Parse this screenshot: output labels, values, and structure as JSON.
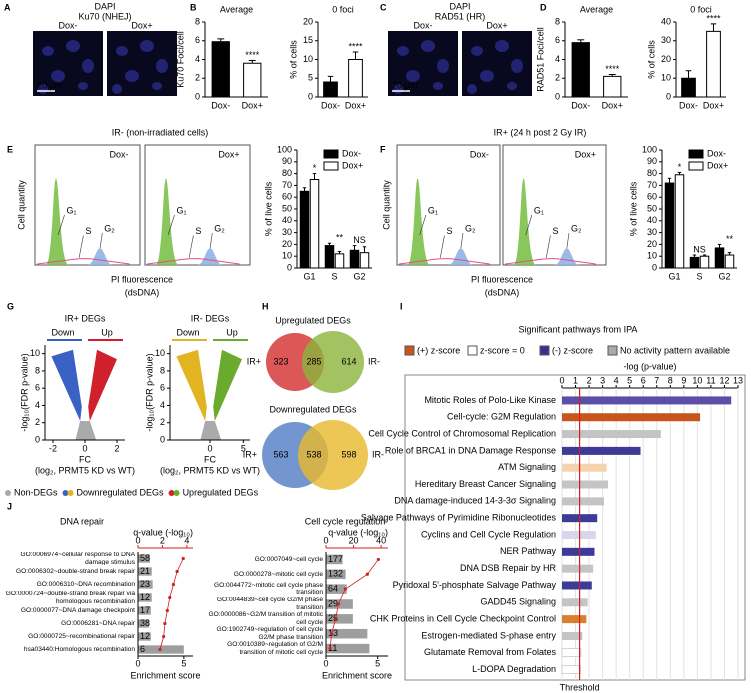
{
  "panels": [
    "A",
    "B",
    "C",
    "D",
    "E",
    "F",
    "G",
    "H",
    "I",
    "J"
  ],
  "micrographs": [
    {
      "stain": "DAPI",
      "stain_color": "#2b2bd0",
      "target": "Ku70 (NHEJ)",
      "target_color": "#3fae3a",
      "conditions": [
        "Dox-",
        "Dox+"
      ],
      "scale": "20 µm"
    },
    {
      "stain": "DAPI",
      "stain_color": "#2b2bd0",
      "target": "RAD51 (HR)",
      "target_color": "#d42020",
      "conditions": [
        "Dox-",
        "Dox+"
      ],
      "scale": "20 µm"
    }
  ],
  "section_titles": [
    "IR- (non-irradiated cells)",
    "IR+ (24 h post 2 Gy IR)"
  ],
  "flow_cytometry": {
    "ylabel": "Cell quantity",
    "xlabel": [
      "PI fluorescence",
      "(dsDNA)"
    ],
    "conditions": [
      "Dox-",
      "Dox+"
    ],
    "phases": [
      "G₁",
      "S",
      "G₂"
    ],
    "g1_color": "#7cc04a",
    "g2_color": "#8fb2e6",
    "fit_color": "#e0508a"
  },
  "deg_legend": [
    {
      "name": "Non-DEGs",
      "colors": [
        "#aaaaaa"
      ]
    },
    {
      "name": "Downregulated DEGs",
      "colors": [
        "#3a62c4",
        "#e3b422"
      ]
    },
    {
      "name": "Upregulated DEGs",
      "colors": [
        "#d0202c",
        "#6aaa2c"
      ]
    }
  ],
  "venn": [
    {
      "title": "Upregulated DEGs",
      "sets": [
        "IR+",
        "IR-"
      ],
      "counts": [
        323,
        285,
        614
      ],
      "colors": [
        "#d63a3a",
        "#8cb43c"
      ]
    },
    {
      "title": "Downregulated DEGs",
      "sets": [
        "IR+",
        "IR-"
      ],
      "counts": [
        563,
        538,
        598
      ],
      "colors": [
        "#5b83c8",
        "#e8b92a"
      ]
    }
  ],
  "chart_data": [
    {
      "type": "bar",
      "title": "Average",
      "ylabel": "Ku70 Foci/cell",
      "categories": [
        "Dox-",
        "Dox+"
      ],
      "values": [
        5.9,
        3.6
      ],
      "errors": [
        0.3,
        0.3
      ],
      "colors": [
        "#000000",
        "#ffffff"
      ],
      "annotations": [
        null,
        "****"
      ],
      "ylim": [
        0,
        8
      ],
      "yticks": [
        0,
        2,
        4,
        6,
        8
      ]
    },
    {
      "type": "bar",
      "title": "0 foci",
      "ylabel": "% of cells",
      "categories": [
        "Dox-",
        "Dox+"
      ],
      "values": [
        4,
        10
      ],
      "errors": [
        1.5,
        2
      ],
      "colors": [
        "#000000",
        "#ffffff"
      ],
      "annotations": [
        null,
        "****"
      ],
      "ylim": [
        0,
        20
      ],
      "yticks": [
        0,
        5,
        10,
        15,
        20
      ]
    },
    {
      "type": "bar",
      "title": "Average",
      "ylabel": "RAD51 Foci/cell",
      "categories": [
        "Dox-",
        "Dox+"
      ],
      "values": [
        5.8,
        2.2
      ],
      "errors": [
        0.3,
        0.2
      ],
      "colors": [
        "#000000",
        "#ffffff"
      ],
      "annotations": [
        null,
        "****"
      ],
      "ylim": [
        0,
        8
      ],
      "yticks": [
        0,
        2,
        4,
        6,
        8
      ]
    },
    {
      "type": "bar",
      "title": "0 foci",
      "ylabel": "% of cells",
      "categories": [
        "Dox-",
        "Dox+"
      ],
      "values": [
        10,
        35
      ],
      "errors": [
        4,
        4
      ],
      "colors": [
        "#000000",
        "#ffffff"
      ],
      "annotations": [
        null,
        "****"
      ],
      "ylim": [
        0,
        40
      ],
      "yticks": [
        0,
        10,
        20,
        30,
        40
      ]
    },
    {
      "type": "grouped-bar",
      "ylabel": "% of live cells",
      "categories": [
        "G1",
        "S",
        "G2"
      ],
      "series": [
        {
          "name": "Dox-",
          "color": "#000000",
          "values": [
            65,
            19,
            15
          ],
          "errors": [
            3,
            2,
            4
          ]
        },
        {
          "name": "Dox+",
          "color": "#ffffff",
          "values": [
            75,
            12,
            13
          ],
          "errors": [
            5,
            2,
            5
          ]
        }
      ],
      "annotations": [
        "*",
        "**",
        "NS"
      ],
      "ylim": [
        0,
        100
      ],
      "yticks": [
        0,
        10,
        20,
        30,
        40,
        50,
        60,
        70,
        80,
        90,
        100
      ],
      "legend": "upper right"
    },
    {
      "type": "grouped-bar",
      "ylabel": "% of live cells",
      "categories": [
        "G1",
        "S",
        "G2"
      ],
      "series": [
        {
          "name": "Dox-",
          "color": "#000000",
          "values": [
            72,
            9,
            17
          ],
          "errors": [
            4,
            2,
            3
          ]
        },
        {
          "name": "Dox+",
          "color": "#ffffff",
          "values": [
            79,
            10,
            11
          ],
          "errors": [
            2,
            1,
            2
          ]
        }
      ],
      "annotations": [
        "*",
        "NS",
        "**"
      ],
      "ylim": [
        0,
        100
      ],
      "yticks": [
        0,
        10,
        20,
        30,
        40,
        50,
        60,
        70,
        80,
        90,
        100
      ],
      "legend": "upper right"
    },
    {
      "type": "volcano",
      "title": "IR+ DEGs",
      "down": "Down",
      "up": "Up",
      "down_color": "#3a62c4",
      "up_color": "#d0202c",
      "ylabel": "-log₁₀(FDR p-value)",
      "xlabel": [
        "FC",
        "(log₂, PRMT5 KD vs WT)"
      ],
      "xlim": [
        -2.5,
        2.5
      ],
      "xticks": [
        -2,
        0,
        2
      ],
      "ylim": [
        0,
        11
      ],
      "yticks": [
        0,
        2,
        4,
        6,
        8,
        10
      ]
    },
    {
      "type": "volcano",
      "title": "IR- DEGs",
      "down": "Down",
      "up": "Up",
      "down_color": "#e3b422",
      "up_color": "#6aaa2c",
      "ylabel": "-log₁₀(FDR p-value)",
      "xlabel": [
        "FC",
        "(log₂, PRMT5 KD vs WT)"
      ],
      "xlim": [
        -6,
        6
      ],
      "xticks": [
        0,
        5
      ],
      "ylim": [
        0,
        11
      ],
      "yticks": [
        0,
        2,
        4,
        6,
        8,
        10
      ]
    },
    {
      "type": "enrichment",
      "title": "DNA repair",
      "categories": [
        "GO:0006974~cellular response to DNA damage stimulus",
        "GO:0006302~double-strand break repair",
        "GO:0006310~DNA recombination",
        "GO:0000724~double-strand break repair via homologous recombination",
        "GO:0000077~DNA damage checkpoint",
        "GO:0006281~DNA repair",
        "GO:0000725~recombinational repair",
        "hsa03440:Homologous recombination"
      ],
      "values": [
        1.3,
        1.5,
        1.6,
        1.5,
        1.4,
        1.2,
        1.4,
        5.0
      ],
      "counts": [
        58,
        21,
        23,
        12,
        17,
        38,
        12,
        6
      ],
      "qvalues": [
        3.7,
        3.2,
        2.9,
        2.6,
        2.4,
        2.2,
        2.1,
        1.8
      ],
      "xlabel": "Enrichment score",
      "xlim": [
        0,
        6
      ],
      "xticks": [
        0,
        5
      ],
      "x2label": "q-value (-log₁₀)",
      "x2lim": [
        0,
        4.5
      ],
      "x2ticks": [
        0,
        2,
        4
      ]
    },
    {
      "type": "enrichment",
      "title": "Cell cycle regulation",
      "categories": [
        "GO:0007049~cell cycle",
        "GO:0000278~mitotic cell cycle",
        "GO:0044772~mitotic cell cycle phase transition",
        "GO:0044839~cell cycle G2/M phase transition",
        "GO:0000086~G2/M transition of mitotic cell cycle",
        "GO:1902749~regulation of cell cycle G2/M phase transition",
        "GO:0010389~regulation of G2/M transition of mitotic cell cycle"
      ],
      "values": [
        1.6,
        1.9,
        2.0,
        2.6,
        2.6,
        4.0,
        4.2
      ],
      "counts": [
        177,
        132,
        64,
        29,
        25,
        13,
        11
      ],
      "qvalues": [
        38,
        30,
        14,
        9,
        7,
        4,
        3
      ],
      "xlabel": "Enrichment score",
      "xlim": [
        0,
        6
      ],
      "xticks": [
        0,
        5
      ],
      "x2label": "q-value (-log₁₀)",
      "x2lim": [
        0,
        45
      ],
      "x2ticks": [
        0,
        20,
        40
      ]
    },
    {
      "type": "hbar",
      "title": "Significant pathways from IPA",
      "legend_items": [
        {
          "name": "(+) z-score",
          "color": "#c8561c"
        },
        {
          "name": "z-score = 0",
          "color": "#ffffff"
        },
        {
          "name": "(-) z-score",
          "color": "#35338f"
        },
        {
          "name": "No activity pattern available",
          "color": "#aaaaaa"
        }
      ],
      "xlabel": "-log (p-value)",
      "xlim": [
        0,
        13
      ],
      "xticks": [
        0,
        1,
        2,
        3,
        4,
        5,
        6,
        7,
        8,
        9,
        10,
        11,
        12,
        13
      ],
      "threshold": {
        "value": 1.3,
        "label": "Threshold"
      },
      "categories": [
        "Mitotic Roles of Polo-Like Kinase",
        "Cell-cycle: G2M Regulation",
        "Cell Cycle Control of Chromosomal Replication",
        "Role of BRCA1 in DNA Damage Response",
        "ATM Signaling",
        "Hereditary Breast Cancer Signaling",
        "DNA damage-induced 14-3-3σ Signaling",
        "Salvage Pathways of Pyrimidine Ribonucleotides",
        "Cyclins and Cell Cycle Regulation",
        "NER Pathway",
        "DNA DSB Repair by HR",
        "Pyridoxal 5'-phosphate Salvage Pathway",
        "GADD45 Signaling",
        "CHK Proteins in Cell Cycle Checkpoint Control",
        "Estrogen-mediated S-phase entry",
        "Glutamate Removal from Folates",
        "L-DOPA Degradation"
      ],
      "values": [
        12.5,
        10.2,
        7.3,
        5.8,
        3.3,
        3.4,
        3.1,
        2.6,
        2.5,
        2.4,
        2.3,
        2.2,
        1.9,
        1.8,
        1.5,
        1.4,
        1.35
      ],
      "colors": [
        "#5b4fa8",
        "#c8561c",
        "#c4c4c4",
        "#3d3a98",
        "#f4d3ae",
        "#c4c4c4",
        "#c4c4c4",
        "#3d3a98",
        "#d9d5ea",
        "#3d3a98",
        "#c4c4c4",
        "#3d3a98",
        "#c4c4c4",
        "#d9802e",
        "#c4c4c4",
        "#ffffff",
        "#ffffff"
      ]
    }
  ]
}
